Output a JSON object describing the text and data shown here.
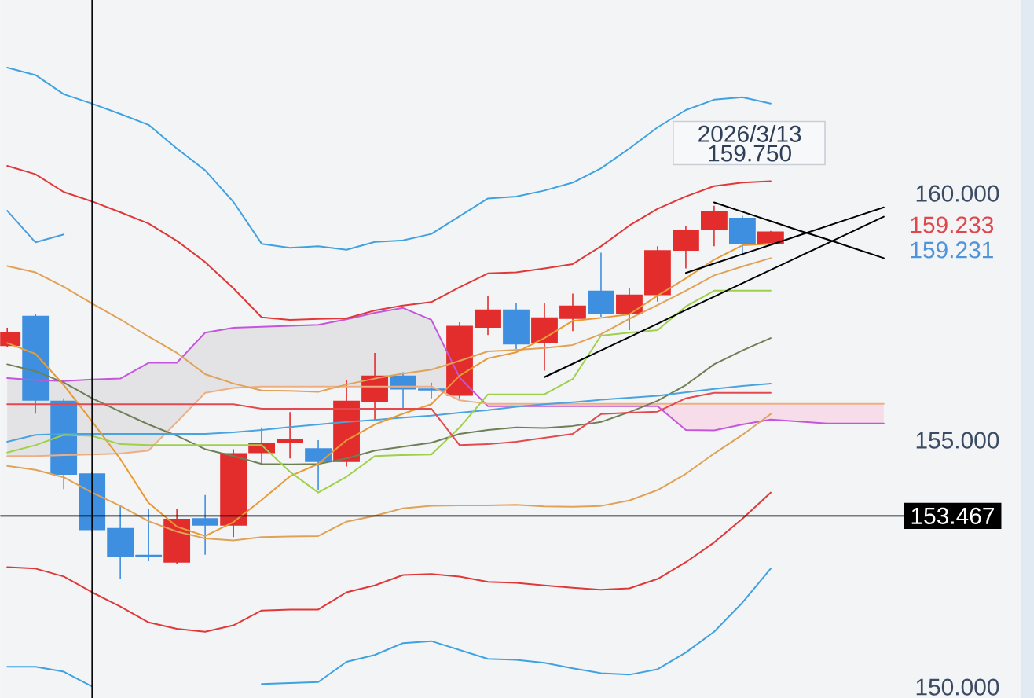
{
  "chart_data": {
    "type": "candlestick",
    "categories": [
      null,
      null,
      null,
      null,
      null,
      null,
      null,
      null,
      null,
      null,
      null,
      null,
      null,
      null,
      null,
      null,
      null,
      null,
      null,
      null,
      null,
      null,
      null,
      null,
      null,
      null,
      null,
      null,
      null,
      null,
      null,
      null
    ],
    "ohlc": [
      [
        156.91,
        157.28,
        156.88,
        157.2
      ],
      [
        157.52,
        157.55,
        155.54,
        155.8
      ],
      [
        155.8,
        155.85,
        154.01,
        154.3
      ],
      [
        154.33,
        154.36,
        153.15,
        153.18
      ],
      [
        153.22,
        153.69,
        152.2,
        152.64
      ],
      [
        152.68,
        153.6,
        152.55,
        152.63
      ],
      [
        152.52,
        153.6,
        152.5,
        153.41
      ],
      [
        153.42,
        153.89,
        152.68,
        153.27
      ],
      [
        153.27,
        154.82,
        153.04,
        154.74
      ],
      [
        154.74,
        155.26,
        154.52,
        154.95
      ],
      [
        154.95,
        155.57,
        154.63,
        155.03
      ],
      [
        154.84,
        155.0,
        153.99,
        154.56
      ],
      [
        154.56,
        156.22,
        154.47,
        155.8
      ],
      [
        155.77,
        156.77,
        155.39,
        156.31
      ],
      [
        156.31,
        156.38,
        155.64,
        156.03
      ],
      [
        156.05,
        156.17,
        155.85,
        156.01
      ],
      [
        155.9,
        157.39,
        155.85,
        157.32
      ],
      [
        157.28,
        157.92,
        157.13,
        157.65
      ],
      [
        157.65,
        157.78,
        156.85,
        156.94
      ],
      [
        156.97,
        157.78,
        156.41,
        157.49
      ],
      [
        157.46,
        157.97,
        157.21,
        157.73
      ],
      [
        158.03,
        158.8,
        157.5,
        157.55
      ],
      [
        157.55,
        158.08,
        157.23,
        157.95
      ],
      [
        157.94,
        158.93,
        157.81,
        158.85
      ],
      [
        158.84,
        159.35,
        158.48,
        159.27
      ],
      [
        159.27,
        159.75,
        158.93,
        159.65
      ],
      [
        159.51,
        159.55,
        158.74,
        158.97
      ],
      [
        158.97,
        159.24,
        158.95,
        159.23
      ],
      null,
      null,
      null,
      null
    ],
    "colors": [
      "#e32d2d",
      "#3f8fe0",
      "#3f8fe0",
      "#3f8fe0",
      "#3f8fe0",
      "#3f8fe0",
      "#e32d2d",
      "#3f8fe0",
      "#e32d2d",
      "#e32d2d",
      "#e32d2d",
      "#3f8fe0",
      "#e32d2d",
      "#e32d2d",
      "#3f8fe0",
      "#3f8fe0",
      "#e32d2d",
      "#e32d2d",
      "#3f8fe0",
      "#e32d2d",
      "#e32d2d",
      "#3f8fe0",
      "#e32d2d",
      "#e32d2d",
      "#e32d2d",
      "#e32d2d",
      "#3f8fe0",
      "#e32d2d",
      null,
      null,
      null,
      null
    ],
    "series": [
      {
        "type": "line",
        "color": "#c455dc",
        "values": [
          156.26,
          156.22,
          156.2,
          156.23,
          156.25,
          156.57,
          156.57,
          157.18,
          157.28,
          157.3,
          157.32,
          157.34,
          157.45,
          157.58,
          157.68,
          157.44,
          156.27,
          155.69,
          155.69,
          155.69,
          155.69,
          155.69,
          155.69,
          155.69,
          155.21,
          155.2,
          155.32,
          155.42,
          155.38,
          155.34,
          155.34,
          155.34
        ],
        "upper": [
          156.26,
          156.22,
          156.2,
          156.23,
          156.25,
          156.57,
          156.57,
          157.18,
          157.28,
          157.3,
          157.32,
          157.34,
          157.45,
          157.58,
          157.68,
          157.44,
          156.27,
          null,
          null,
          null,
          null,
          null,
          null,
          null,
          null,
          null,
          null,
          null,
          null,
          null,
          null,
          null
        ],
        "lower": [
          154.68,
          154.68,
          154.7,
          154.71,
          154.73,
          154.79,
          155.37,
          155.96,
          156.06,
          156.09,
          156.09,
          156.09,
          156.09,
          156.09,
          156.09,
          156.09,
          155.81,
          null,
          null,
          null,
          null,
          null,
          null,
          null,
          null,
          null,
          null,
          null,
          null,
          null,
          null,
          null
        ]
      },
      {
        "type": "line",
        "color": "#eeae84",
        "values": [
          154.68,
          154.68,
          154.7,
          154.71,
          154.73,
          154.79,
          155.37,
          155.96,
          156.06,
          156.09,
          156.09,
          156.09,
          156.09,
          156.09,
          156.09,
          156.09,
          155.81,
          155.74,
          155.74,
          155.74,
          155.74,
          155.74,
          155.74,
          155.74,
          155.74,
          155.74,
          155.74,
          155.74,
          155.74,
          155.74,
          155.74,
          155.74
        ],
        "upper": [
          null,
          null,
          null,
          null,
          null,
          null,
          null,
          null,
          null,
          null,
          null,
          null,
          null,
          null,
          null,
          null,
          null,
          155.74,
          155.74,
          155.74,
          155.74,
          155.74,
          155.74,
          155.74,
          155.74,
          155.74,
          155.74,
          155.74,
          155.74,
          155.74,
          155.74,
          155.74
        ],
        "lower": [
          null,
          null,
          null,
          null,
          null,
          null,
          null,
          null,
          null,
          null,
          null,
          null,
          null,
          null,
          null,
          null,
          null,
          155.69,
          155.69,
          155.69,
          155.69,
          155.69,
          155.69,
          155.69,
          155.21,
          155.2,
          155.32,
          155.42,
          155.38,
          155.34,
          155.34,
          155.34
        ]
      },
      {
        "type": "line",
        "color": "#3fa2e0",
        "values": [
          162.55,
          162.4,
          162.01,
          161.82,
          161.61,
          161.39,
          160.91,
          160.47,
          159.83,
          158.98,
          158.9,
          158.93,
          158.86,
          159.02,
          159.05,
          159.18,
          159.54,
          159.9,
          159.94,
          160.06,
          160.22,
          160.51,
          160.91,
          161.34,
          161.69,
          161.9,
          161.95,
          161.82,
          null,
          null,
          null,
          null
        ]
      },
      {
        "type": "line",
        "color": "#e03838",
        "values": [
          160.56,
          160.39,
          160.03,
          159.84,
          159.62,
          159.39,
          159.04,
          158.61,
          158.08,
          157.49,
          157.44,
          157.46,
          157.47,
          157.63,
          157.73,
          157.8,
          158.1,
          158.38,
          158.4,
          158.48,
          158.57,
          158.93,
          159.35,
          159.69,
          159.94,
          160.15,
          160.22,
          160.25,
          null,
          null,
          null,
          null
        ]
      },
      {
        "type": "line",
        "color": "#e0a256",
        "values": [
          158.53,
          158.4,
          158.11,
          157.77,
          157.45,
          157.1,
          156.77,
          156.34,
          156.15,
          156.01,
          156.0,
          155.98,
          156.13,
          156.25,
          156.35,
          156.43,
          156.61,
          156.8,
          156.83,
          156.87,
          156.93,
          157.15,
          157.46,
          157.74,
          158.03,
          158.34,
          158.52,
          158.69,
          null,
          null,
          null,
          null
        ]
      },
      {
        "type": "line",
        "color": "#6e7f56",
        "values": [
          156.54,
          156.4,
          156.17,
          155.85,
          155.58,
          155.32,
          155.09,
          154.82,
          154.68,
          154.52,
          154.51,
          154.52,
          154.63,
          154.79,
          154.87,
          154.95,
          155.13,
          155.21,
          155.26,
          155.25,
          155.29,
          155.37,
          155.57,
          155.8,
          156.12,
          156.54,
          156.82,
          157.07,
          null,
          null,
          null,
          null
        ]
      },
      {
        "type": "line",
        "color": "#e0a256",
        "values": [
          154.48,
          154.4,
          154.25,
          153.94,
          153.67,
          153.36,
          153.15,
          153.01,
          152.97,
          153.04,
          153.05,
          153.06,
          153.35,
          153.47,
          153.62,
          153.67,
          153.68,
          153.68,
          153.69,
          153.66,
          153.65,
          153.67,
          153.78,
          153.99,
          154.32,
          154.73,
          155.11,
          155.53,
          null,
          null,
          null,
          null
        ]
      },
      {
        "type": "line",
        "color": "#e03838",
        "values": [
          152.43,
          152.4,
          152.24,
          151.92,
          151.63,
          151.31,
          151.18,
          151.12,
          151.25,
          151.55,
          151.57,
          151.57,
          151.92,
          152.06,
          152.27,
          152.29,
          152.24,
          152.13,
          152.11,
          152.06,
          152.01,
          151.97,
          152.0,
          152.19,
          152.53,
          152.93,
          153.41,
          153.94,
          null,
          null,
          null,
          null
        ]
      },
      {
        "type": "line",
        "color": "#3fa2e0",
        "values": [
          150.41,
          150.41,
          150.31,
          150.01,
          null,
          null,
          null,
          null,
          null,
          150.06,
          150.08,
          150.1,
          150.51,
          150.65,
          150.89,
          150.93,
          150.75,
          150.57,
          150.55,
          150.49,
          150.38,
          150.28,
          150.25,
          150.36,
          150.7,
          151.12,
          151.71,
          152.4,
          null,
          null,
          null,
          null
        ]
      },
      {
        "type": "line",
        "color": "#4aa3df",
        "values": [
          154.97,
          155.11,
          155.13,
          155.13,
          155.13,
          155.13,
          155.13,
          155.13,
          155.16,
          155.21,
          155.27,
          155.32,
          155.37,
          155.41,
          155.46,
          155.5,
          155.56,
          155.61,
          155.68,
          155.73,
          155.77,
          155.82,
          155.86,
          155.9,
          155.97,
          156.04,
          156.1,
          156.15,
          null,
          null,
          null,
          null
        ]
      },
      {
        "type": "line",
        "color": "#e89a36",
        "values": [
          156.97,
          156.75,
          156.12,
          155.38,
          154.62,
          153.73,
          153.25,
          153.06,
          153.34,
          153.79,
          154.27,
          154.52,
          155.0,
          155.32,
          155.54,
          155.73,
          156.31,
          156.66,
          156.78,
          157.07,
          157.42,
          157.48,
          157.55,
          157.93,
          158.28,
          158.66,
          158.95,
          158.98,
          null,
          null,
          null,
          null
        ]
      },
      {
        "type": "line",
        "color": "#9fd04a",
        "values": [
          154.75,
          154.9,
          155.11,
          155.09,
          154.92,
          154.9,
          154.9,
          154.9,
          154.9,
          154.9,
          154.36,
          153.94,
          154.26,
          154.68,
          154.7,
          154.71,
          155.26,
          155.93,
          155.93,
          155.93,
          156.24,
          157.12,
          157.18,
          157.23,
          157.71,
          158.03,
          158.03,
          158.03,
          null,
          null,
          null,
          null
        ]
      },
      {
        "type": "line",
        "color": "#e3494e",
        "values": [
          155.73,
          155.73,
          155.73,
          155.73,
          155.73,
          155.73,
          155.73,
          155.73,
          155.73,
          155.64,
          155.64,
          155.64,
          155.64,
          155.64,
          155.64,
          155.64,
          154.9,
          154.92,
          154.97,
          155.05,
          155.13,
          155.53,
          155.56,
          155.58,
          155.85,
          155.96,
          155.96,
          155.96,
          null,
          null,
          null,
          null
        ]
      },
      {
        "type": "line",
        "color": "#4a9ee0",
        "values": [
          159.65,
          159.01,
          159.17,
          null,
          null,
          null,
          null,
          null,
          null,
          null,
          null,
          null,
          null,
          null,
          null,
          null,
          null,
          null,
          null,
          null,
          null,
          null,
          null,
          null,
          null,
          null,
          null,
          null,
          null,
          null,
          null,
          null
        ]
      },
      {
        "type": "line",
        "color": "#000000",
        "values": [
          null,
          null,
          null,
          null,
          null,
          null,
          null,
          null,
          null,
          null,
          null,
          null,
          null,
          null,
          null,
          null,
          null,
          null,
          null,
          156.28,
          156.55,
          156.82,
          157.09,
          157.36,
          157.64,
          157.91,
          158.18,
          158.45,
          158.72,
          158.99,
          159.26,
          159.53
        ]
      },
      {
        "type": "line",
        "color": "#000000",
        "values": [
          null,
          null,
          null,
          null,
          null,
          null,
          null,
          null,
          null,
          null,
          null,
          null,
          null,
          null,
          null,
          null,
          null,
          null,
          null,
          null,
          null,
          null,
          null,
          null,
          158.39,
          158.58,
          158.77,
          158.96,
          159.15,
          159.34,
          159.53,
          159.72
        ]
      },
      {
        "type": "line",
        "color": "#000000",
        "values": [
          null,
          null,
          null,
          null,
          null,
          null,
          null,
          null,
          null,
          null,
          null,
          null,
          null,
          null,
          null,
          null,
          null,
          null,
          null,
          null,
          null,
          null,
          null,
          null,
          null,
          159.82,
          159.63,
          159.44,
          159.25,
          159.07,
          158.88,
          158.69
        ]
      }
    ],
    "ylim": [
      149.78,
      163.92
    ],
    "yticks": [
      {
        "value": 150,
        "label": "150.000"
      },
      {
        "value": 155,
        "label": "155.000"
      },
      {
        "value": 160,
        "label": "160.000"
      }
    ],
    "tick_labels": "y",
    "ref_lines": [
      {
        "axis": "y",
        "value": 153.467,
        "label": "153.467",
        "color": "#000000"
      }
    ],
    "annotations": [
      "2026/3/13",
      "159.750",
      "159.233",
      "159.231"
    ]
  }
}
